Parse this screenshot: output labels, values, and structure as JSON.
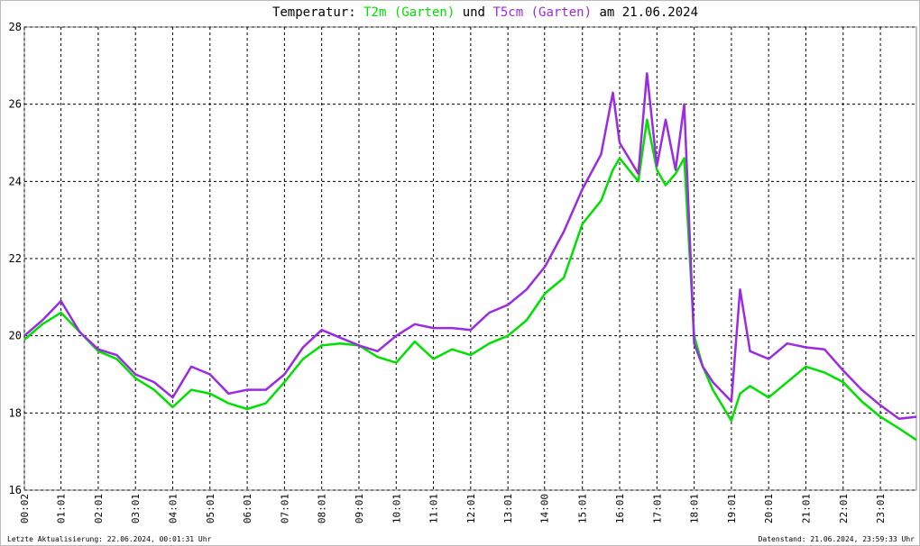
{
  "chart_data": {
    "type": "line",
    "title": "Temperatur:",
    "title_joiner": "und",
    "date_label": "am 21.06.2024",
    "footer_left": "Letzte Aktualisierung: 22.06.2024, 00:01:31 Uhr",
    "footer_right": "Datenstand: 21.06.2024, 23:59:33 Uhr",
    "x": [
      "00:02",
      "00:31",
      "01:01",
      "01:31",
      "02:01",
      "02:31",
      "03:01",
      "03:31",
      "04:01",
      "04:31",
      "05:01",
      "05:31",
      "06:01",
      "06:31",
      "07:01",
      "07:31",
      "08:01",
      "08:31",
      "09:01",
      "09:31",
      "10:01",
      "10:31",
      "11:01",
      "11:31",
      "12:01",
      "12:31",
      "13:01",
      "13:31",
      "14:01",
      "14:31",
      "15:01",
      "15:31",
      "15:50",
      "16:01",
      "16:31",
      "16:45",
      "17:01",
      "17:15",
      "17:31",
      "17:45",
      "18:01",
      "18:15",
      "18:31",
      "19:01",
      "19:15",
      "19:31",
      "20:01",
      "20:31",
      "21:01",
      "21:31",
      "22:01",
      "22:31",
      "23:01",
      "23:31",
      "23:59"
    ],
    "series": [
      {
        "name": "T2m (Garten)",
        "color": "#00e000",
        "values": [
          19.9,
          20.3,
          20.6,
          20.1,
          19.6,
          19.4,
          18.9,
          18.6,
          18.15,
          18.6,
          18.5,
          18.25,
          18.1,
          18.25,
          18.8,
          19.4,
          19.75,
          19.8,
          19.75,
          19.45,
          19.3,
          19.85,
          19.4,
          19.65,
          19.5,
          19.8,
          20.0,
          20.4,
          21.1,
          21.5,
          22.9,
          23.5,
          24.3,
          24.6,
          24.0,
          25.6,
          24.3,
          23.9,
          24.2,
          24.6,
          20.0,
          19.2,
          18.6,
          17.8,
          18.5,
          18.7,
          18.4,
          18.8,
          19.2,
          19.05,
          18.8,
          18.3,
          17.9,
          17.6,
          17.3
        ]
      },
      {
        "name": "T5cm (Garten)",
        "color": "#9a2be2",
        "values": [
          20.0,
          20.4,
          20.9,
          20.1,
          19.65,
          19.5,
          19.0,
          18.8,
          18.4,
          19.2,
          19.0,
          18.5,
          18.6,
          18.6,
          19.0,
          19.7,
          20.15,
          19.95,
          19.75,
          19.6,
          20.0,
          20.3,
          20.2,
          20.2,
          20.15,
          20.6,
          20.8,
          21.2,
          21.8,
          22.7,
          23.8,
          24.7,
          26.3,
          25.0,
          24.2,
          26.8,
          24.4,
          25.6,
          24.3,
          26.0,
          19.8,
          19.2,
          18.8,
          18.3,
          21.2,
          19.6,
          19.4,
          19.8,
          19.7,
          19.65,
          19.1,
          18.6,
          18.2,
          17.85,
          17.9
        ]
      }
    ],
    "xlim": [
      "00:02",
      "23:59"
    ],
    "xticks": [
      "00:02",
      "01:01",
      "02:01",
      "03:01",
      "04:01",
      "05:01",
      "06:01",
      "07:01",
      "08:01",
      "09:01",
      "10:01",
      "11:01",
      "12:01",
      "13:01",
      "14:00",
      "15:01",
      "16:01",
      "17:01",
      "18:01",
      "19:01",
      "20:01",
      "21:01",
      "22:01",
      "23:01"
    ],
    "ylim": [
      16,
      28
    ],
    "yticks": [
      16,
      18,
      20,
      22,
      24,
      26,
      28
    ],
    "grid": true
  }
}
